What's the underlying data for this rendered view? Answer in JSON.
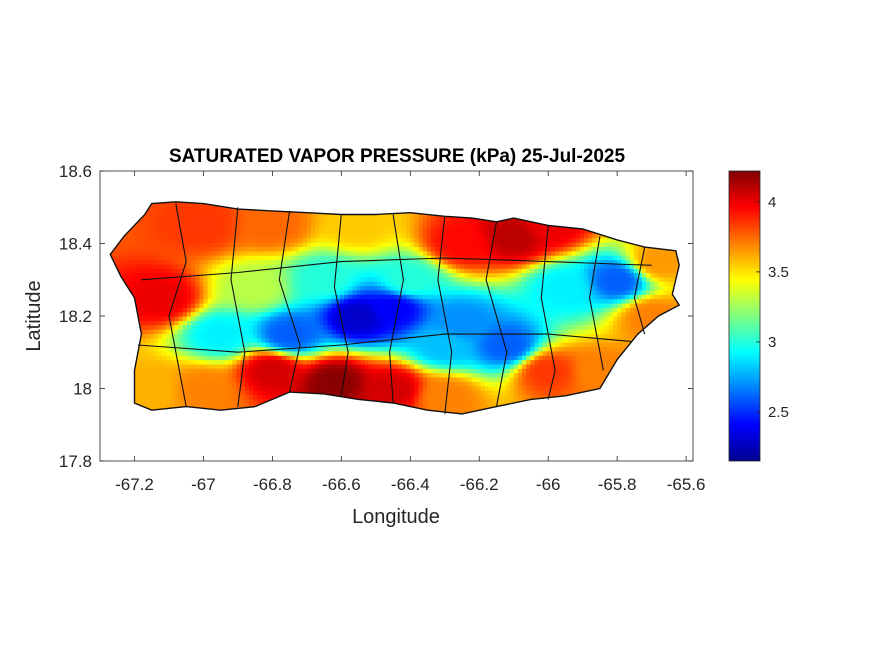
{
  "chart_data": {
    "type": "heatmap",
    "title": "SATURATED VAPOR PRESSURE (kPa) 25-Jul-2025",
    "xlabel": "Longitude",
    "ylabel": "Latitude",
    "xlim": [
      -67.3,
      -65.58
    ],
    "ylim": [
      17.8,
      18.6
    ],
    "xticks": [
      -67.2,
      -67,
      -66.8,
      -66.6,
      -66.4,
      -66.2,
      -66,
      -65.8,
      -65.6
    ],
    "xtick_labels": [
      "-67.2",
      "-67",
      "-66.8",
      "-66.6",
      "-66.4",
      "-66.2",
      "-66",
      "-65.8",
      "-65.6"
    ],
    "yticks": [
      17.8,
      18,
      18.2,
      18.4,
      18.6
    ],
    "ytick_labels": [
      "17.8",
      "18",
      "18.2",
      "18.4",
      "18.6"
    ],
    "colorbar": {
      "colormap": "jet",
      "range": [
        2.15,
        4.22
      ],
      "ticks": [
        2.5,
        3,
        3.5,
        4
      ],
      "tick_labels": [
        "2.5",
        "3",
        "3.5",
        "4"
      ],
      "units": "kPa"
    },
    "grid": false,
    "region_outline": [
      [
        -67.27,
        18.37
      ],
      [
        -67.23,
        18.42
      ],
      [
        -67.17,
        18.48
      ],
      [
        -67.15,
        18.51
      ],
      [
        -67.08,
        18.515
      ],
      [
        -67.0,
        18.51
      ],
      [
        -66.9,
        18.495
      ],
      [
        -66.8,
        18.49
      ],
      [
        -66.7,
        18.485
      ],
      [
        -66.6,
        18.48
      ],
      [
        -66.5,
        18.48
      ],
      [
        -66.4,
        18.485
      ],
      [
        -66.3,
        18.475
      ],
      [
        -66.22,
        18.47
      ],
      [
        -66.15,
        18.46
      ],
      [
        -66.1,
        18.47
      ],
      [
        -66.0,
        18.45
      ],
      [
        -65.9,
        18.44
      ],
      [
        -65.8,
        18.41
      ],
      [
        -65.72,
        18.39
      ],
      [
        -65.63,
        18.38
      ],
      [
        -65.62,
        18.34
      ],
      [
        -65.64,
        18.26
      ],
      [
        -65.62,
        18.23
      ],
      [
        -65.68,
        18.2
      ],
      [
        -65.74,
        18.15
      ],
      [
        -65.8,
        18.08
      ],
      [
        -65.85,
        18.0
      ],
      [
        -65.95,
        17.98
      ],
      [
        -66.05,
        17.97
      ],
      [
        -66.15,
        17.95
      ],
      [
        -66.25,
        17.93
      ],
      [
        -66.35,
        17.94
      ],
      [
        -66.45,
        17.96
      ],
      [
        -66.55,
        17.97
      ],
      [
        -66.65,
        17.985
      ],
      [
        -66.75,
        17.99
      ],
      [
        -66.85,
        17.95
      ],
      [
        -66.95,
        17.94
      ],
      [
        -67.05,
        17.95
      ],
      [
        -67.15,
        17.94
      ],
      [
        -67.2,
        17.96
      ],
      [
        -67.2,
        18.05
      ],
      [
        -67.18,
        18.15
      ],
      [
        -67.2,
        18.25
      ],
      [
        -67.24,
        18.31
      ]
    ],
    "field_anchors": [
      {
        "lon": -66.55,
        "lat": 18.2,
        "value": 2.3
      },
      {
        "lon": -66.45,
        "lat": 18.22,
        "value": 2.4
      },
      {
        "lon": -66.75,
        "lat": 18.15,
        "value": 2.6
      },
      {
        "lon": -66.95,
        "lat": 18.15,
        "value": 2.9
      },
      {
        "lon": -66.25,
        "lat": 18.18,
        "value": 2.7
      },
      {
        "lon": -66.12,
        "lat": 18.12,
        "value": 2.6
      },
      {
        "lon": -66.3,
        "lat": 18.12,
        "value": 2.8
      },
      {
        "lon": -65.8,
        "lat": 18.3,
        "value": 2.6
      },
      {
        "lon": -65.95,
        "lat": 18.28,
        "value": 2.9
      },
      {
        "lon": -66.4,
        "lat": 18.3,
        "value": 3.0
      },
      {
        "lon": -66.65,
        "lat": 18.3,
        "value": 3.0
      },
      {
        "lon": -66.85,
        "lat": 18.28,
        "value": 3.3
      },
      {
        "lon": -66.62,
        "lat": 18.02,
        "value": 4.2
      },
      {
        "lon": -66.45,
        "lat": 18.0,
        "value": 4.05
      },
      {
        "lon": -66.8,
        "lat": 18.05,
        "value": 4.05
      },
      {
        "lon": -67.12,
        "lat": 18.25,
        "value": 4.0
      },
      {
        "lon": -66.1,
        "lat": 18.42,
        "value": 4.1
      },
      {
        "lon": -66.0,
        "lat": 18.45,
        "value": 4.0
      },
      {
        "lon": -66.25,
        "lat": 18.4,
        "value": 3.95
      },
      {
        "lon": -67.0,
        "lat": 18.45,
        "value": 3.85
      },
      {
        "lon": -66.8,
        "lat": 18.45,
        "value": 3.75
      },
      {
        "lon": -66.55,
        "lat": 18.45,
        "value": 3.55
      },
      {
        "lon": -66.0,
        "lat": 18.05,
        "value": 3.85
      },
      {
        "lon": -65.85,
        "lat": 18.05,
        "value": 3.7
      },
      {
        "lon": -65.7,
        "lat": 18.2,
        "value": 3.7
      },
      {
        "lon": -65.68,
        "lat": 18.35,
        "value": 3.65
      },
      {
        "lon": -67.15,
        "lat": 18.0,
        "value": 3.6
      },
      {
        "lon": -67.0,
        "lat": 18.0,
        "value": 3.7
      },
      {
        "lon": -66.3,
        "lat": 17.98,
        "value": 3.7
      }
    ]
  },
  "colors": {
    "outline": "#111111",
    "axis": "#262626",
    "background": "#ffffff"
  }
}
